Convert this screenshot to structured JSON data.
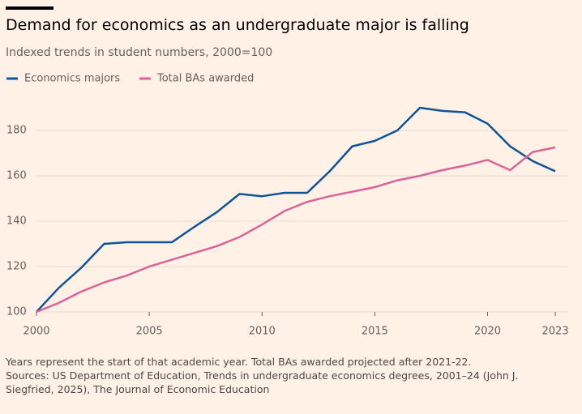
{
  "chart_data": {
    "type": "line",
    "title": "Demand for economics as an undergraduate major is falling",
    "subtitle": "Indexed trends in student numbers, 2000=100",
    "note": "Years represent the start of that academic year. Total BAs awarded projected after 2021-22.",
    "source": "Sources: US Department of Education, Trends in undergraduate economics degrees, 2001–24 (John J. Siegfried, 2025), The Journal of Economic Education",
    "x": [
      2000,
      2001,
      2002,
      2003,
      2004,
      2005,
      2006,
      2007,
      2008,
      2009,
      2010,
      2011,
      2012,
      2013,
      2014,
      2015,
      2016,
      2017,
      2018,
      2019,
      2020,
      2021,
      2022,
      2023
    ],
    "series": [
      {
        "name": "Economics majors",
        "color": "#0f5499",
        "values": [
          100,
          110.7,
          119.6,
          130,
          130.7,
          130.7,
          130.7,
          137.5,
          144,
          152,
          151,
          152.5,
          152.5,
          162,
          173,
          175.4,
          180,
          190,
          188.6,
          188,
          183,
          173,
          166.5,
          162
        ]
      },
      {
        "name": "Total BAs awarded",
        "color": "#d9649a",
        "values": [
          100,
          104,
          109,
          113,
          116,
          120,
          123,
          126,
          129,
          133,
          138.5,
          144.5,
          148.5,
          151,
          153,
          155,
          158,
          160,
          162.5,
          164.5,
          167,
          162.5,
          170.5,
          172.5
        ]
      }
    ],
    "xlim": [
      2000,
      2023
    ],
    "xticks": [
      2000,
      2005,
      2010,
      2015,
      2020,
      2023
    ],
    "ylim": [
      100,
      192
    ],
    "yticks": [
      100,
      120,
      140,
      160,
      180
    ],
    "grid": true
  }
}
